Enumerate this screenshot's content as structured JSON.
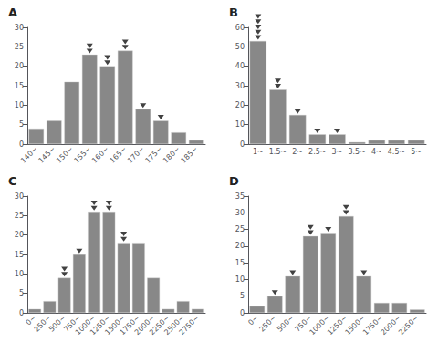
{
  "chart_data": [
    {
      "type": "bar",
      "title": "A",
      "categories": [
        "140~",
        "145~",
        "150~",
        "155~",
        "160~",
        "165~",
        "170~",
        "175~",
        "180~",
        "185~"
      ],
      "values": [
        4,
        6,
        16,
        23,
        20,
        24,
        9,
        6,
        3,
        1
      ],
      "arrow_counts": [
        0,
        0,
        0,
        2,
        2,
        2,
        1,
        1,
        0,
        0
      ],
      "color": "#888888",
      "ylim": [
        0,
        30
      ],
      "yticks": [
        0,
        5,
        10,
        15,
        20,
        25,
        30
      ],
      "grid": false
    },
    {
      "type": "bar",
      "title": "B",
      "categories": [
        "1~",
        "1.5~",
        "2~",
        "2.5~",
        "3~",
        "3.5~",
        "4~",
        "4.5~",
        "5~"
      ],
      "values": [
        53,
        28,
        15,
        5,
        5,
        1,
        2,
        2,
        2
      ],
      "arrow_counts": [
        5,
        2,
        1,
        1,
        1,
        0,
        0,
        0,
        0
      ],
      "color": "#888888",
      "ylim": [
        0,
        60
      ],
      "yticks": [
        0,
        10,
        20,
        30,
        40,
        50,
        60
      ],
      "grid": false
    },
    {
      "type": "bar",
      "title": "C",
      "categories": [
        "0~",
        "250~",
        "500~",
        "750~",
        "1000~",
        "1250~",
        "1500~",
        "1750~",
        "2000~",
        "2250~",
        "2500~",
        "2750~"
      ],
      "values": [
        1,
        3,
        9,
        15,
        26,
        26,
        18,
        18,
        9,
        1,
        3,
        1
      ],
      "arrow_counts": [
        0,
        0,
        2,
        1,
        2,
        2,
        2,
        0,
        0,
        0,
        0,
        0
      ],
      "color": "#888888",
      "ylim": [
        0,
        30
      ],
      "yticks": [
        0,
        5,
        10,
        15,
        20,
        25,
        30
      ],
      "grid": false
    },
    {
      "type": "bar",
      "title": "D",
      "categories": [
        "0~",
        "250~",
        "500~",
        "750~",
        "1000~",
        "1250~",
        "1500~",
        "1750~",
        "2000~",
        "2250~"
      ],
      "values": [
        2,
        5,
        11,
        23,
        24,
        29,
        11,
        3,
        3,
        1
      ],
      "arrow_counts": [
        0,
        1,
        1,
        2,
        1,
        2,
        1,
        0,
        0,
        0
      ],
      "color": "#888888",
      "ylim": [
        0,
        35
      ],
      "yticks": [
        0,
        5,
        10,
        15,
        20,
        25,
        30,
        35
      ],
      "grid": false
    }
  ]
}
